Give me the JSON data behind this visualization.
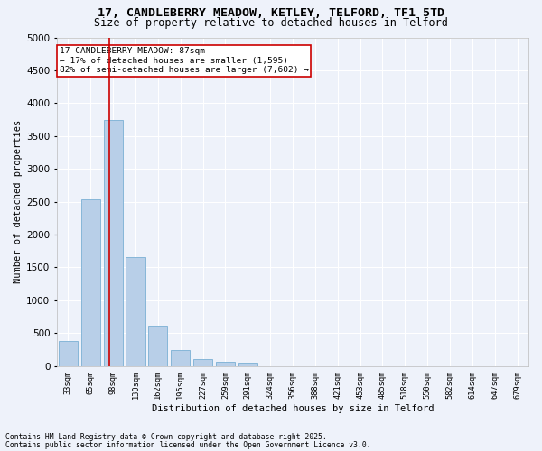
{
  "title1": "17, CANDLEBERRY MEADOW, KETLEY, TELFORD, TF1 5TD",
  "title2": "Size of property relative to detached houses in Telford",
  "xlabel": "Distribution of detached houses by size in Telford",
  "ylabel": "Number of detached properties",
  "categories": [
    "33sqm",
    "65sqm",
    "98sqm",
    "130sqm",
    "162sqm",
    "195sqm",
    "227sqm",
    "259sqm",
    "291sqm",
    "324sqm",
    "356sqm",
    "388sqm",
    "421sqm",
    "453sqm",
    "485sqm",
    "518sqm",
    "550sqm",
    "582sqm",
    "614sqm",
    "647sqm",
    "679sqm"
  ],
  "values": [
    375,
    2540,
    3750,
    1660,
    615,
    245,
    105,
    60,
    45,
    0,
    0,
    0,
    0,
    0,
    0,
    0,
    0,
    0,
    0,
    0,
    0
  ],
  "bar_color": "#b8cfe8",
  "bar_edgecolor": "#7aafd4",
  "vline_x": 1.85,
  "vline_color": "#cc0000",
  "annotation_title": "17 CANDLEBERRY MEADOW: 87sqm",
  "annotation_line2": "← 17% of detached houses are smaller (1,595)",
  "annotation_line3": "82% of semi-detached houses are larger (7,602) →",
  "annotation_box_color": "#cc0000",
  "ylim": [
    0,
    5000
  ],
  "yticks": [
    0,
    500,
    1000,
    1500,
    2000,
    2500,
    3000,
    3500,
    4000,
    4500,
    5000
  ],
  "footnote1": "Contains HM Land Registry data © Crown copyright and database right 2025.",
  "footnote2": "Contains public sector information licensed under the Open Government Licence v3.0.",
  "background_color": "#eef2fa",
  "grid_color": "#ffffff",
  "title_fontsize": 9.5,
  "subtitle_fontsize": 8.5
}
